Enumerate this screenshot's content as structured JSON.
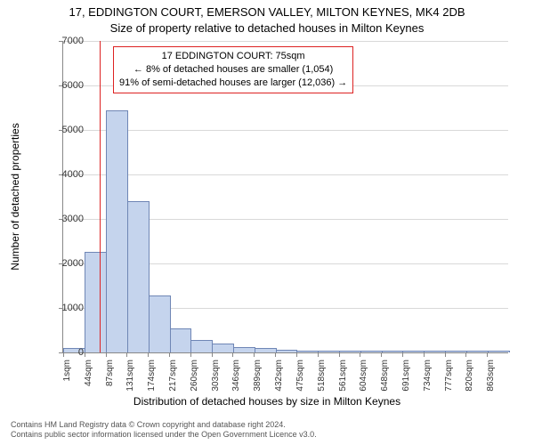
{
  "titles": {
    "line1": "17, EDDINGTON COURT, EMERSON VALLEY, MILTON KEYNES, MK4 2DB",
    "line2": "Size of property relative to detached houses in Milton Keynes"
  },
  "chart": {
    "type": "histogram",
    "bar_fill": "#c5d4ed",
    "bar_stroke": "#6f86b5",
    "grid_color": "#d9d9d9",
    "axis_color": "#888888",
    "background_color": "#ffffff",
    "ref_line_color": "#dd2222",
    "ylabel": "Number of detached properties",
    "xlabel": "Distribution of detached houses by size in Milton Keynes",
    "ylim": [
      0,
      7000
    ],
    "ytick_step": 1000,
    "x_tick_labels": [
      "1sqm",
      "44sqm",
      "87sqm",
      "131sqm",
      "174sqm",
      "217sqm",
      "260sqm",
      "303sqm",
      "346sqm",
      "389sqm",
      "432sqm",
      "475sqm",
      "518sqm",
      "561sqm",
      "604sqm",
      "648sqm",
      "691sqm",
      "734sqm",
      "777sqm",
      "820sqm",
      "863sqm"
    ],
    "values": [
      90,
      2250,
      5420,
      3390,
      1260,
      520,
      270,
      190,
      100,
      80,
      40,
      25,
      20,
      12,
      10,
      8,
      6,
      4,
      3,
      2,
      1
    ],
    "ref_value_sqm": 75,
    "label_fontsize": 12,
    "tick_fontsize": 11,
    "title_fontsize": 13
  },
  "annotation": {
    "line1": "17 EDDINGTON COURT: 75sqm",
    "line2": "← 8% of detached houses are smaller (1,054)",
    "line3": "91% of semi-detached houses are larger (12,036) →"
  },
  "footer": {
    "line1": "Contains HM Land Registry data © Crown copyright and database right 2024.",
    "line2": "Contains public sector information licensed under the Open Government Licence v3.0."
  }
}
